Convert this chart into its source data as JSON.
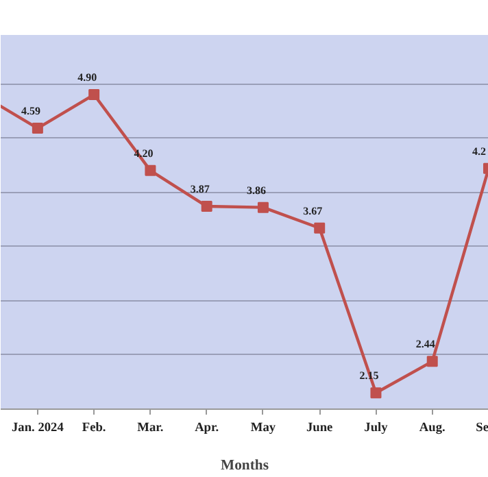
{
  "chart_data": {
    "type": "line",
    "xlabel": "Months",
    "categories": [
      null,
      "Jan. 2024",
      "Feb.",
      "Mar.",
      "Apr.",
      "May",
      "June",
      "July",
      "Aug.",
      "Se"
    ],
    "series": [
      {
        "color": "#c0504d",
        "values": [
          4.9,
          4.59,
          4.9,
          4.2,
          3.87,
          3.86,
          3.67,
          2.15,
          2.44,
          4.22
        ],
        "value_labels": [
          null,
          "4.59",
          "4.90",
          "4.20",
          "3.87",
          "3.86",
          "3.67",
          "2.15",
          "2.44",
          "4.2"
        ]
      }
    ],
    "ylim": [
      2,
      5.45
    ],
    "yticks": [
      {
        "value": 2.5,
        "label": null
      },
      {
        "value": 3,
        "label": null
      },
      {
        "value": 3.5,
        "label": null
      },
      {
        "value": 4,
        "label": null
      },
      {
        "value": 4.5,
        "label": null
      },
      {
        "value": 5,
        "label": null
      }
    ],
    "tick_labels": "x",
    "grid": "y",
    "marker": "square",
    "line_style": "solid"
  }
}
